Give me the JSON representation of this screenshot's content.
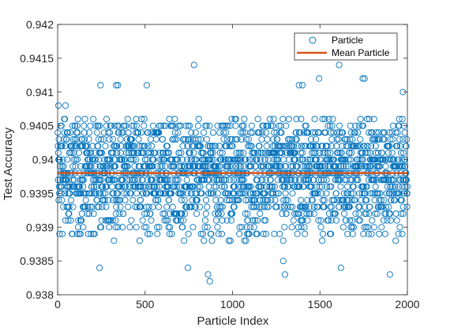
{
  "chart_data": {
    "type": "scatter",
    "title": "",
    "xlabel": "Particle Index",
    "ylabel": "Test Accuracy",
    "xlim": [
      0,
      2000
    ],
    "ylim": [
      0.938,
      0.942
    ],
    "x_ticks": [
      0,
      500,
      1000,
      1500,
      2000
    ],
    "x_tick_labels": [
      "0",
      "500",
      "1000",
      "1500",
      "2000"
    ],
    "y_ticks": [
      0.938,
      0.9385,
      0.939,
      0.9395,
      0.94,
      0.9405,
      0.941,
      0.9415,
      0.942
    ],
    "y_tick_labels": [
      "0.938",
      "0.9385",
      "0.939",
      "0.9395",
      "0.94",
      "0.9405",
      "0.941",
      "0.9415",
      "0.942"
    ],
    "grid": false,
    "legend_position": "top-right",
    "series": [
      {
        "name": "Particle",
        "marker": "open-circle",
        "color": "#0072BD",
        "n_points": 2000,
        "bulk_range": [
          0.9388,
          0.9406
        ],
        "notable_points": [
          {
            "x": 780,
            "y": 0.9414
          },
          {
            "x": 1610,
            "y": 0.9414
          },
          {
            "x": 1495,
            "y": 0.9412
          },
          {
            "x": 1745,
            "y": 0.9412
          },
          {
            "x": 1755,
            "y": 0.9412
          },
          {
            "x": 245,
            "y": 0.9411
          },
          {
            "x": 335,
            "y": 0.9411
          },
          {
            "x": 345,
            "y": 0.9411
          },
          {
            "x": 510,
            "y": 0.9411
          },
          {
            "x": 1380,
            "y": 0.9411
          },
          {
            "x": 1400,
            "y": 0.9411
          },
          {
            "x": 1975,
            "y": 0.941
          },
          {
            "x": 5,
            "y": 0.9408
          },
          {
            "x": 45,
            "y": 0.9408
          },
          {
            "x": 860,
            "y": 0.9383
          },
          {
            "x": 870,
            "y": 0.9382
          },
          {
            "x": 745,
            "y": 0.9384
          },
          {
            "x": 240,
            "y": 0.9384
          },
          {
            "x": 1620,
            "y": 0.9384
          },
          {
            "x": 1300,
            "y": 0.9383
          },
          {
            "x": 1900,
            "y": 0.9383
          },
          {
            "x": 1290,
            "y": 0.9385
          }
        ]
      },
      {
        "name": "Mean Particle",
        "type": "line",
        "color": "#D95319",
        "value": 0.9398
      }
    ]
  }
}
